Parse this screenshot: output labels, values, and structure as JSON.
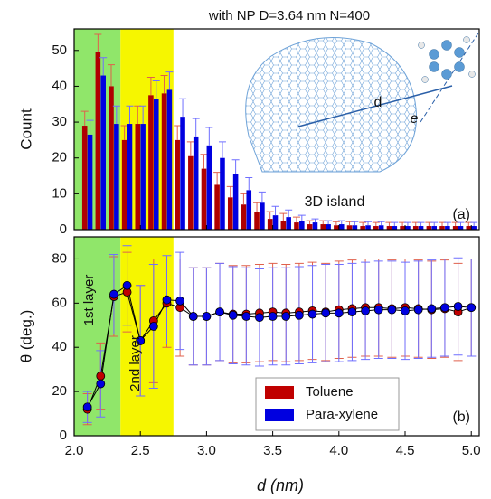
{
  "chart_data": [
    {
      "type": "bar",
      "title": "with NP   D=3.64 nm   N=400",
      "y_label": "Count",
      "annotations": [
        "3D island",
        "(a)",
        "d",
        "e"
      ],
      "x": [
        2.1,
        2.2,
        2.3,
        2.4,
        2.5,
        2.6,
        2.7,
        2.8,
        2.9,
        3.0,
        3.1,
        3.2,
        3.3,
        3.4,
        3.5,
        3.6,
        3.7,
        3.8,
        3.9,
        4.0,
        4.1,
        4.2,
        4.3,
        4.4,
        4.5,
        4.6,
        4.7,
        4.8,
        4.9,
        5.0
      ],
      "series": [
        {
          "name": "Toluene",
          "color": "#b00000",
          "error_color": "#e0604c",
          "values": [
            29,
            49.5,
            40,
            25,
            29.5,
            37.5,
            38,
            25,
            20.5,
            17,
            12.5,
            9,
            7,
            5,
            3,
            2.5,
            2,
            1.5,
            1.5,
            1.2,
            1.2,
            1,
            1,
            1,
            1,
            1,
            1,
            1,
            1,
            1
          ],
          "errors": [
            4,
            5,
            6,
            4,
            5,
            5,
            5,
            4,
            4,
            4,
            3.5,
            3,
            3,
            2.5,
            2,
            2,
            1.5,
            1,
            1,
            1,
            1,
            1,
            1,
            1,
            1,
            1,
            1,
            1,
            1,
            1
          ]
        },
        {
          "name": "Para-xylene",
          "color": "#0000e0",
          "error_color": "#6f6fff",
          "values": [
            26.5,
            43,
            29.5,
            29.5,
            29.5,
            36.5,
            39,
            31.5,
            26,
            23.5,
            20,
            15.5,
            11,
            7.5,
            4,
            3.5,
            2.5,
            2,
            1.5,
            1.5,
            1.2,
            1.2,
            1.2,
            1,
            1,
            1,
            1,
            1,
            1,
            1
          ],
          "errors": [
            4,
            5,
            5,
            5,
            5,
            5,
            5,
            5,
            5,
            5,
            4.5,
            4,
            3.5,
            3,
            2.5,
            2,
            1.5,
            1,
            1,
            1,
            1,
            1,
            1,
            1,
            1,
            1,
            1,
            1,
            1,
            1
          ]
        }
      ],
      "xlim": [
        2.0,
        5.06
      ],
      "ylim": [
        0,
        56
      ],
      "yticks": [
        0,
        10,
        20,
        30,
        40,
        50
      ],
      "regions": [
        {
          "from": 2.0,
          "to": 2.35,
          "color": "#90e66a"
        },
        {
          "from": 2.35,
          "to": 2.75,
          "color": "#f6f600"
        }
      ]
    },
    {
      "type": "line",
      "y_label": "θ (deg.)",
      "x_label": "d (nm)",
      "annotations": [
        "(b)"
      ],
      "legend": "lower center",
      "x": [
        2.1,
        2.2,
        2.3,
        2.4,
        2.5,
        2.6,
        2.7,
        2.8,
        2.9,
        3.0,
        3.1,
        3.2,
        3.3,
        3.4,
        3.5,
        3.6,
        3.7,
        3.8,
        3.9,
        4.0,
        4.1,
        4.2,
        4.3,
        4.4,
        4.5,
        4.6,
        4.7,
        4.8,
        4.9,
        5.0
      ],
      "series": [
        {
          "name": "Toluene",
          "color": "#c00000",
          "error_color": "#e0604c",
          "values": [
            12,
            27,
            63,
            65,
            43,
            52,
            60,
            58,
            54,
            54,
            56,
            55,
            55,
            55.5,
            56,
            55.5,
            56,
            56.5,
            56,
            57,
            57.5,
            58,
            58,
            57.5,
            58,
            57.5,
            57,
            57.5,
            56,
            58
          ],
          "errors": [
            7,
            15,
            18,
            18,
            25,
            28,
            20,
            22,
            22,
            22,
            22,
            22,
            22,
            22,
            22,
            22,
            22,
            22,
            22,
            22,
            22,
            22,
            22,
            22,
            22,
            22,
            22,
            22,
            22,
            22
          ]
        },
        {
          "name": "Para-xylene",
          "color": "#0000e0",
          "error_color": "#6f6fff",
          "values": [
            13,
            23.5,
            64,
            68,
            43,
            49.5,
            61.5,
            61,
            54,
            54,
            56,
            54.5,
            54,
            53.5,
            54,
            54,
            54.5,
            55,
            55.5,
            55.5,
            56,
            56.5,
            57,
            57,
            56.5,
            57,
            57.5,
            58,
            58.5,
            58
          ],
          "errors": [
            7,
            15,
            18,
            18,
            25,
            28,
            20,
            22,
            22,
            22,
            22,
            22,
            22,
            22,
            22,
            22,
            22,
            22,
            22,
            22,
            22,
            22,
            22,
            22,
            22,
            22,
            22,
            22,
            22,
            22
          ]
        }
      ],
      "xlim": [
        2.0,
        5.06
      ],
      "ylim": [
        0,
        90
      ],
      "yticks": [
        0,
        20,
        40,
        60,
        80
      ],
      "xticks": [
        {
          "value": 2,
          "label": "2.0"
        },
        {
          "value": 2.5,
          "label": "2.5"
        },
        {
          "value": 3,
          "label": "3.0"
        },
        {
          "value": 3.5,
          "label": "3.5"
        },
        {
          "value": 4,
          "label": "4.0"
        },
        {
          "value": 4.5,
          "label": "4.5"
        },
        {
          "value": 5,
          "label": "5.0"
        }
      ],
      "regions": [
        {
          "from": 2.0,
          "to": 2.35,
          "color": "#90e66a",
          "label": "1st layer"
        },
        {
          "from": 2.35,
          "to": 2.75,
          "color": "#f6f600",
          "label": "2nd layer"
        }
      ]
    }
  ]
}
